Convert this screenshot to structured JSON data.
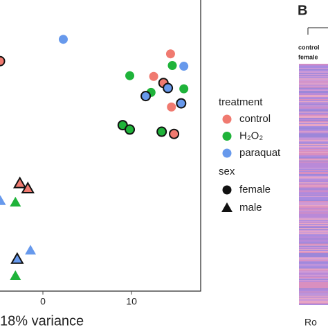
{
  "chart_data": {
    "type": "scatter",
    "xlabel": "18% variance",
    "xlim": [
      -4.84,
      17.8
    ],
    "ylim": [
      -20,
      20
    ],
    "xticks": [
      0,
      10
    ],
    "legend_title": "treatment",
    "series": [
      {
        "name": "control",
        "color": "#f07a70",
        "x": [
          -4.84,
          14.4,
          12.5,
          13.6,
          14.5,
          14.8,
          -2.6,
          -1.7
        ],
        "values": [
          11.6,
          12.6,
          9.5,
          8.6,
          5.3,
          1.6,
          -5.2,
          -5.9
        ],
        "marker": [
          "circle",
          "circle",
          "circle",
          "circle",
          "circle",
          "circle",
          "triangle",
          "triangle"
        ],
        "outlined": [
          true,
          false,
          false,
          true,
          false,
          true,
          true,
          true
        ]
      },
      {
        "name": "H₂O₂",
        "color": "#1fb33a",
        "x": [
          14.6,
          9.8,
          15.9,
          12.2,
          9.0,
          9.8,
          13.4,
          -3.1,
          -3.1
        ],
        "values": [
          11.0,
          9.6,
          7.8,
          7.3,
          2.8,
          2.2,
          1.9,
          -7.8,
          -17.9
        ],
        "marker": [
          "circle",
          "circle",
          "circle",
          "circle",
          "circle",
          "circle",
          "circle",
          "triangle",
          "triangle"
        ],
        "outlined": [
          false,
          false,
          false,
          false,
          true,
          true,
          true,
          false,
          false
        ]
      },
      {
        "name": "paraquat",
        "color": "#6799ec",
        "x": [
          2.3,
          15.9,
          14.1,
          11.6,
          15.6,
          -4.8,
          -1.4,
          -2.9
        ],
        "values": [
          14.6,
          10.9,
          7.9,
          6.8,
          5.8,
          -7.6,
          -14.4,
          -15.6
        ],
        "marker": [
          "circle",
          "circle",
          "circle",
          "circle",
          "circle",
          "triangle",
          "triangle",
          "triangle"
        ],
        "outlined": [
          false,
          false,
          true,
          true,
          true,
          false,
          false,
          true
        ]
      }
    ],
    "shape_legend": {
      "title": "sex",
      "entries": [
        "female",
        "male"
      ],
      "markers": [
        "circle",
        "triangle"
      ]
    },
    "panel_b": {
      "label": "B",
      "column_label": [
        "control",
        "female"
      ],
      "axis_label": "Ro"
    }
  }
}
